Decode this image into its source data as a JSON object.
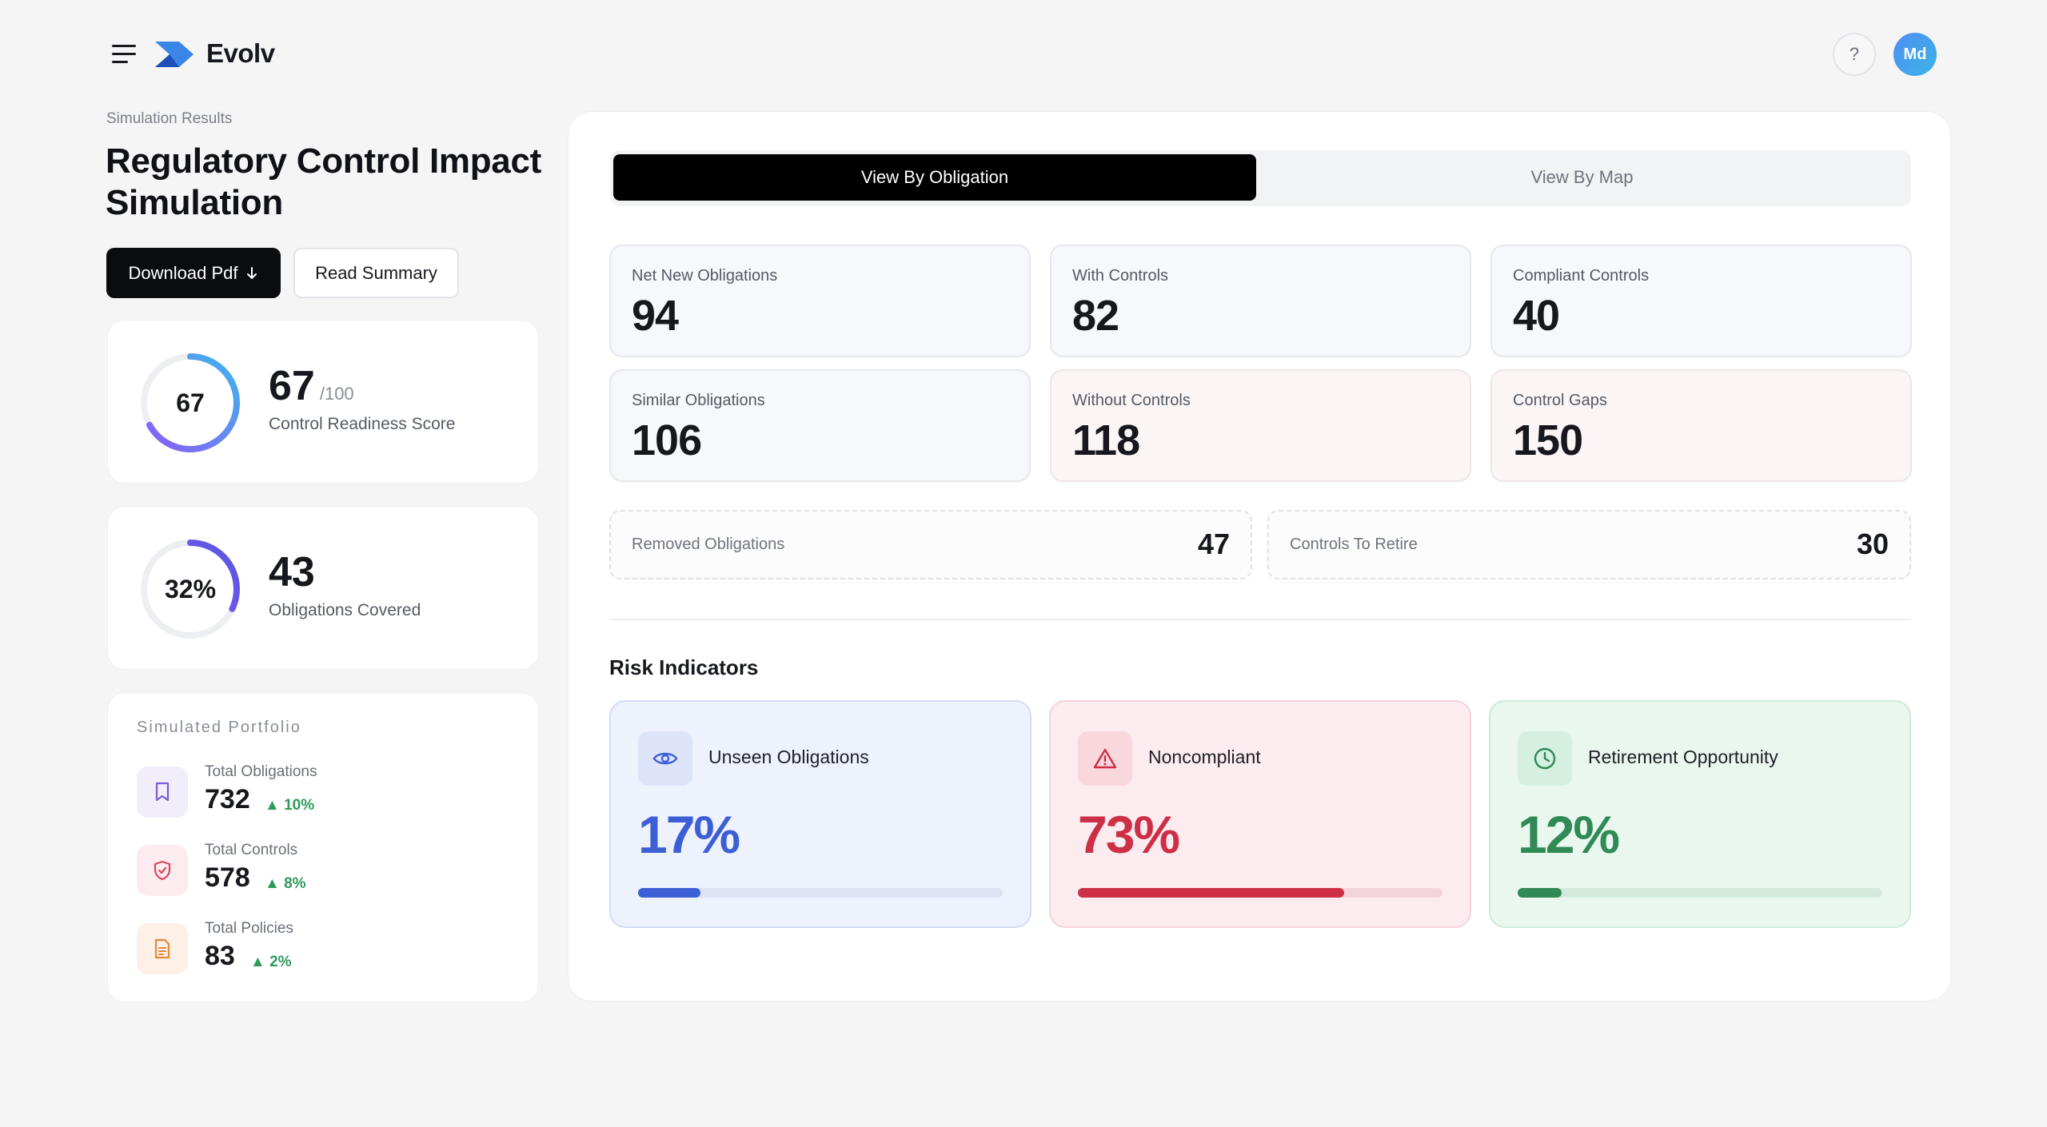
{
  "header": {
    "brand": "Evolv",
    "help": "?",
    "avatar_initials": "Md"
  },
  "page": {
    "breadcrumb": "Simulation Results",
    "title": "Regulatory Control Impact Simulation",
    "download_label": "Download Pdf",
    "download_icon": "arrow-down-icon",
    "summary_label": "Read Summary"
  },
  "readiness": {
    "ring_value": "67",
    "score": "67",
    "score_max": "/100",
    "label": "Control Readiness Score",
    "fraction": 0.67
  },
  "coverage": {
    "ring_value": "32%",
    "count": "43",
    "label": "Obligations Covered",
    "fraction": 0.32
  },
  "portfolio": {
    "title": "Simulated Portfolio",
    "items": [
      {
        "label": "Total Obligations",
        "value": "732",
        "delta": "▲ 10%",
        "icon": "bookmark-icon",
        "color": "#7c5cd6",
        "bg": "#f1edfb"
      },
      {
        "label": "Total Controls",
        "value": "578",
        "delta": "▲ 8%",
        "icon": "shield-icon",
        "color": "#d9475f",
        "bg": "#fcecef"
      },
      {
        "label": "Total Policies",
        "value": "83",
        "delta": "▲ 2%",
        "icon": "document-icon",
        "color": "#e38a3e",
        "bg": "#fdf0e6"
      }
    ]
  },
  "tabs": {
    "active": "View By Obligation",
    "inactive": "View By Map"
  },
  "stats": [
    {
      "label": "Net New Obligations",
      "value": "94"
    },
    {
      "label": "With Controls",
      "value": "82"
    },
    {
      "label": "Compliant Controls",
      "value": "40"
    },
    {
      "label": "Similar Obligations",
      "value": "106"
    },
    {
      "label": "Without Controls",
      "value": "118"
    },
    {
      "label": "Control Gaps",
      "value": "150"
    }
  ],
  "secondary": [
    {
      "label": "Removed Obligations",
      "value": "47"
    },
    {
      "label": "Controls To Retire",
      "value": "30"
    }
  ],
  "risk": {
    "title": "Risk Indicators",
    "cards": [
      {
        "label": "Unseen Obligations",
        "value": "17%",
        "fraction": 0.17,
        "icon": "eye-icon",
        "accent": "#3c5fd6",
        "bg": "#eef2fd",
        "border": "#d3dcf6",
        "iconbg": "#dde4fa",
        "track": "#dde3f3"
      },
      {
        "label": "Noncompliant",
        "value": "73%",
        "fraction": 0.73,
        "icon": "warning-icon",
        "accent": "#cc2f46",
        "bg": "#fcecef",
        "border": "#f4d3d9",
        "iconbg": "#f8d7dd",
        "track": "#f3d4da"
      },
      {
        "label": "Retirement Opportunity",
        "value": "12%",
        "fraction": 0.12,
        "icon": "clock-icon",
        "accent": "#2f8a56",
        "bg": "#eaf7ef",
        "border": "#cfe9d9",
        "iconbg": "#d5efe0",
        "track": "#d4eadc"
      }
    ]
  }
}
